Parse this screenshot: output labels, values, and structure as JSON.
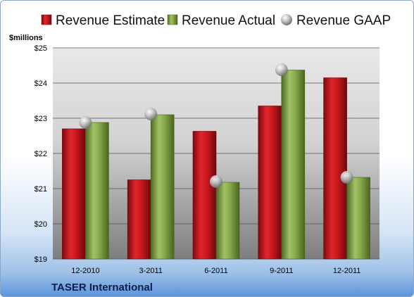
{
  "colors": {
    "estimate": "#c8181f",
    "actual": "#86a84a",
    "gaap": "#9a9a9a"
  },
  "chart_data": {
    "type": "bar",
    "units_label": "$millions",
    "company": "TASER International",
    "categories": [
      "12-2010",
      "3-2011",
      "6-2011",
      "9-2011",
      "12-2011"
    ],
    "series": [
      {
        "name": "Revenue Estimate",
        "kind": "bar",
        "values": [
          22.7,
          21.25,
          22.63,
          23.35,
          24.15
        ]
      },
      {
        "name": "Revenue Actual",
        "kind": "bar",
        "values": [
          22.88,
          23.1,
          21.18,
          24.37,
          21.32
        ]
      },
      {
        "name": "Revenue GAAP",
        "kind": "marker",
        "values": [
          22.88,
          23.12,
          21.2,
          24.38,
          21.32
        ]
      }
    ],
    "y_ticks": [
      "$19",
      "$20",
      "$21",
      "$22",
      "$23",
      "$24",
      "$25"
    ],
    "ylim": [
      19,
      25
    ],
    "grid": true,
    "legend_position": "top"
  }
}
